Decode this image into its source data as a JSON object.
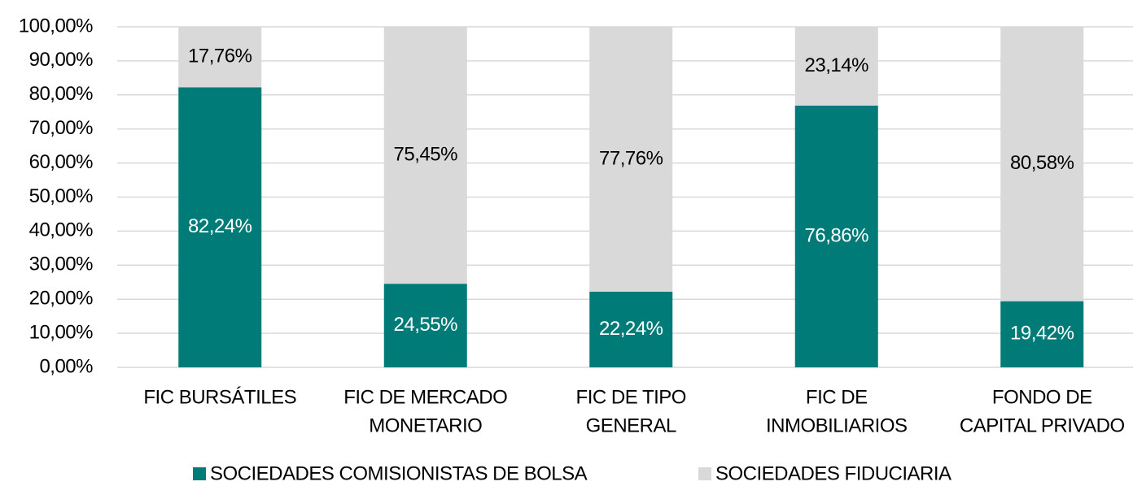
{
  "chart_data": {
    "type": "stacked_bar",
    "categories": [
      [
        "FIC BURSÁTILES"
      ],
      [
        "FIC DE MERCADO",
        "MONETARIO"
      ],
      [
        "FIC DE TIPO",
        "GENERAL"
      ],
      [
        "FIC DE",
        "INMOBILIARIOS"
      ],
      [
        "FONDO DE",
        "CAPITAL PRIVADO"
      ]
    ],
    "series": [
      {
        "name": "SOCIEDADES COMISIONISTAS DE BOLSA",
        "color": "#007b78",
        "label_color": "#ffffff",
        "values": [
          82.24,
          24.55,
          22.24,
          76.86,
          19.42
        ],
        "value_labels": [
          "82,24%",
          "24,55%",
          "22,24%",
          "76,86%",
          "19,42%"
        ]
      },
      {
        "name": "SOCIEDADES FIDUCIARIA",
        "color": "#d9d9d9",
        "label_color": "#000000",
        "values": [
          17.76,
          75.45,
          77.76,
          23.14,
          80.58
        ],
        "value_labels": [
          "17,76%",
          "75,45%",
          "77,76%",
          "23,14%",
          "80,58%"
        ]
      }
    ],
    "ylim": [
      0,
      100
    ],
    "yticks": [
      {
        "value": 0,
        "label": "0,00%"
      },
      {
        "value": 10,
        "label": "10,00%"
      },
      {
        "value": 20,
        "label": "20,00%"
      },
      {
        "value": 30,
        "label": "30,00%"
      },
      {
        "value": 40,
        "label": "40,00%"
      },
      {
        "value": 50,
        "label": "50,00%"
      },
      {
        "value": 60,
        "label": "60,00%"
      },
      {
        "value": 70,
        "label": "70,00%"
      },
      {
        "value": 80,
        "label": "80,00%"
      },
      {
        "value": 90,
        "label": "90,00%"
      },
      {
        "value": 100,
        "label": "100,00%"
      }
    ],
    "grid": true,
    "legend": "bottom"
  }
}
